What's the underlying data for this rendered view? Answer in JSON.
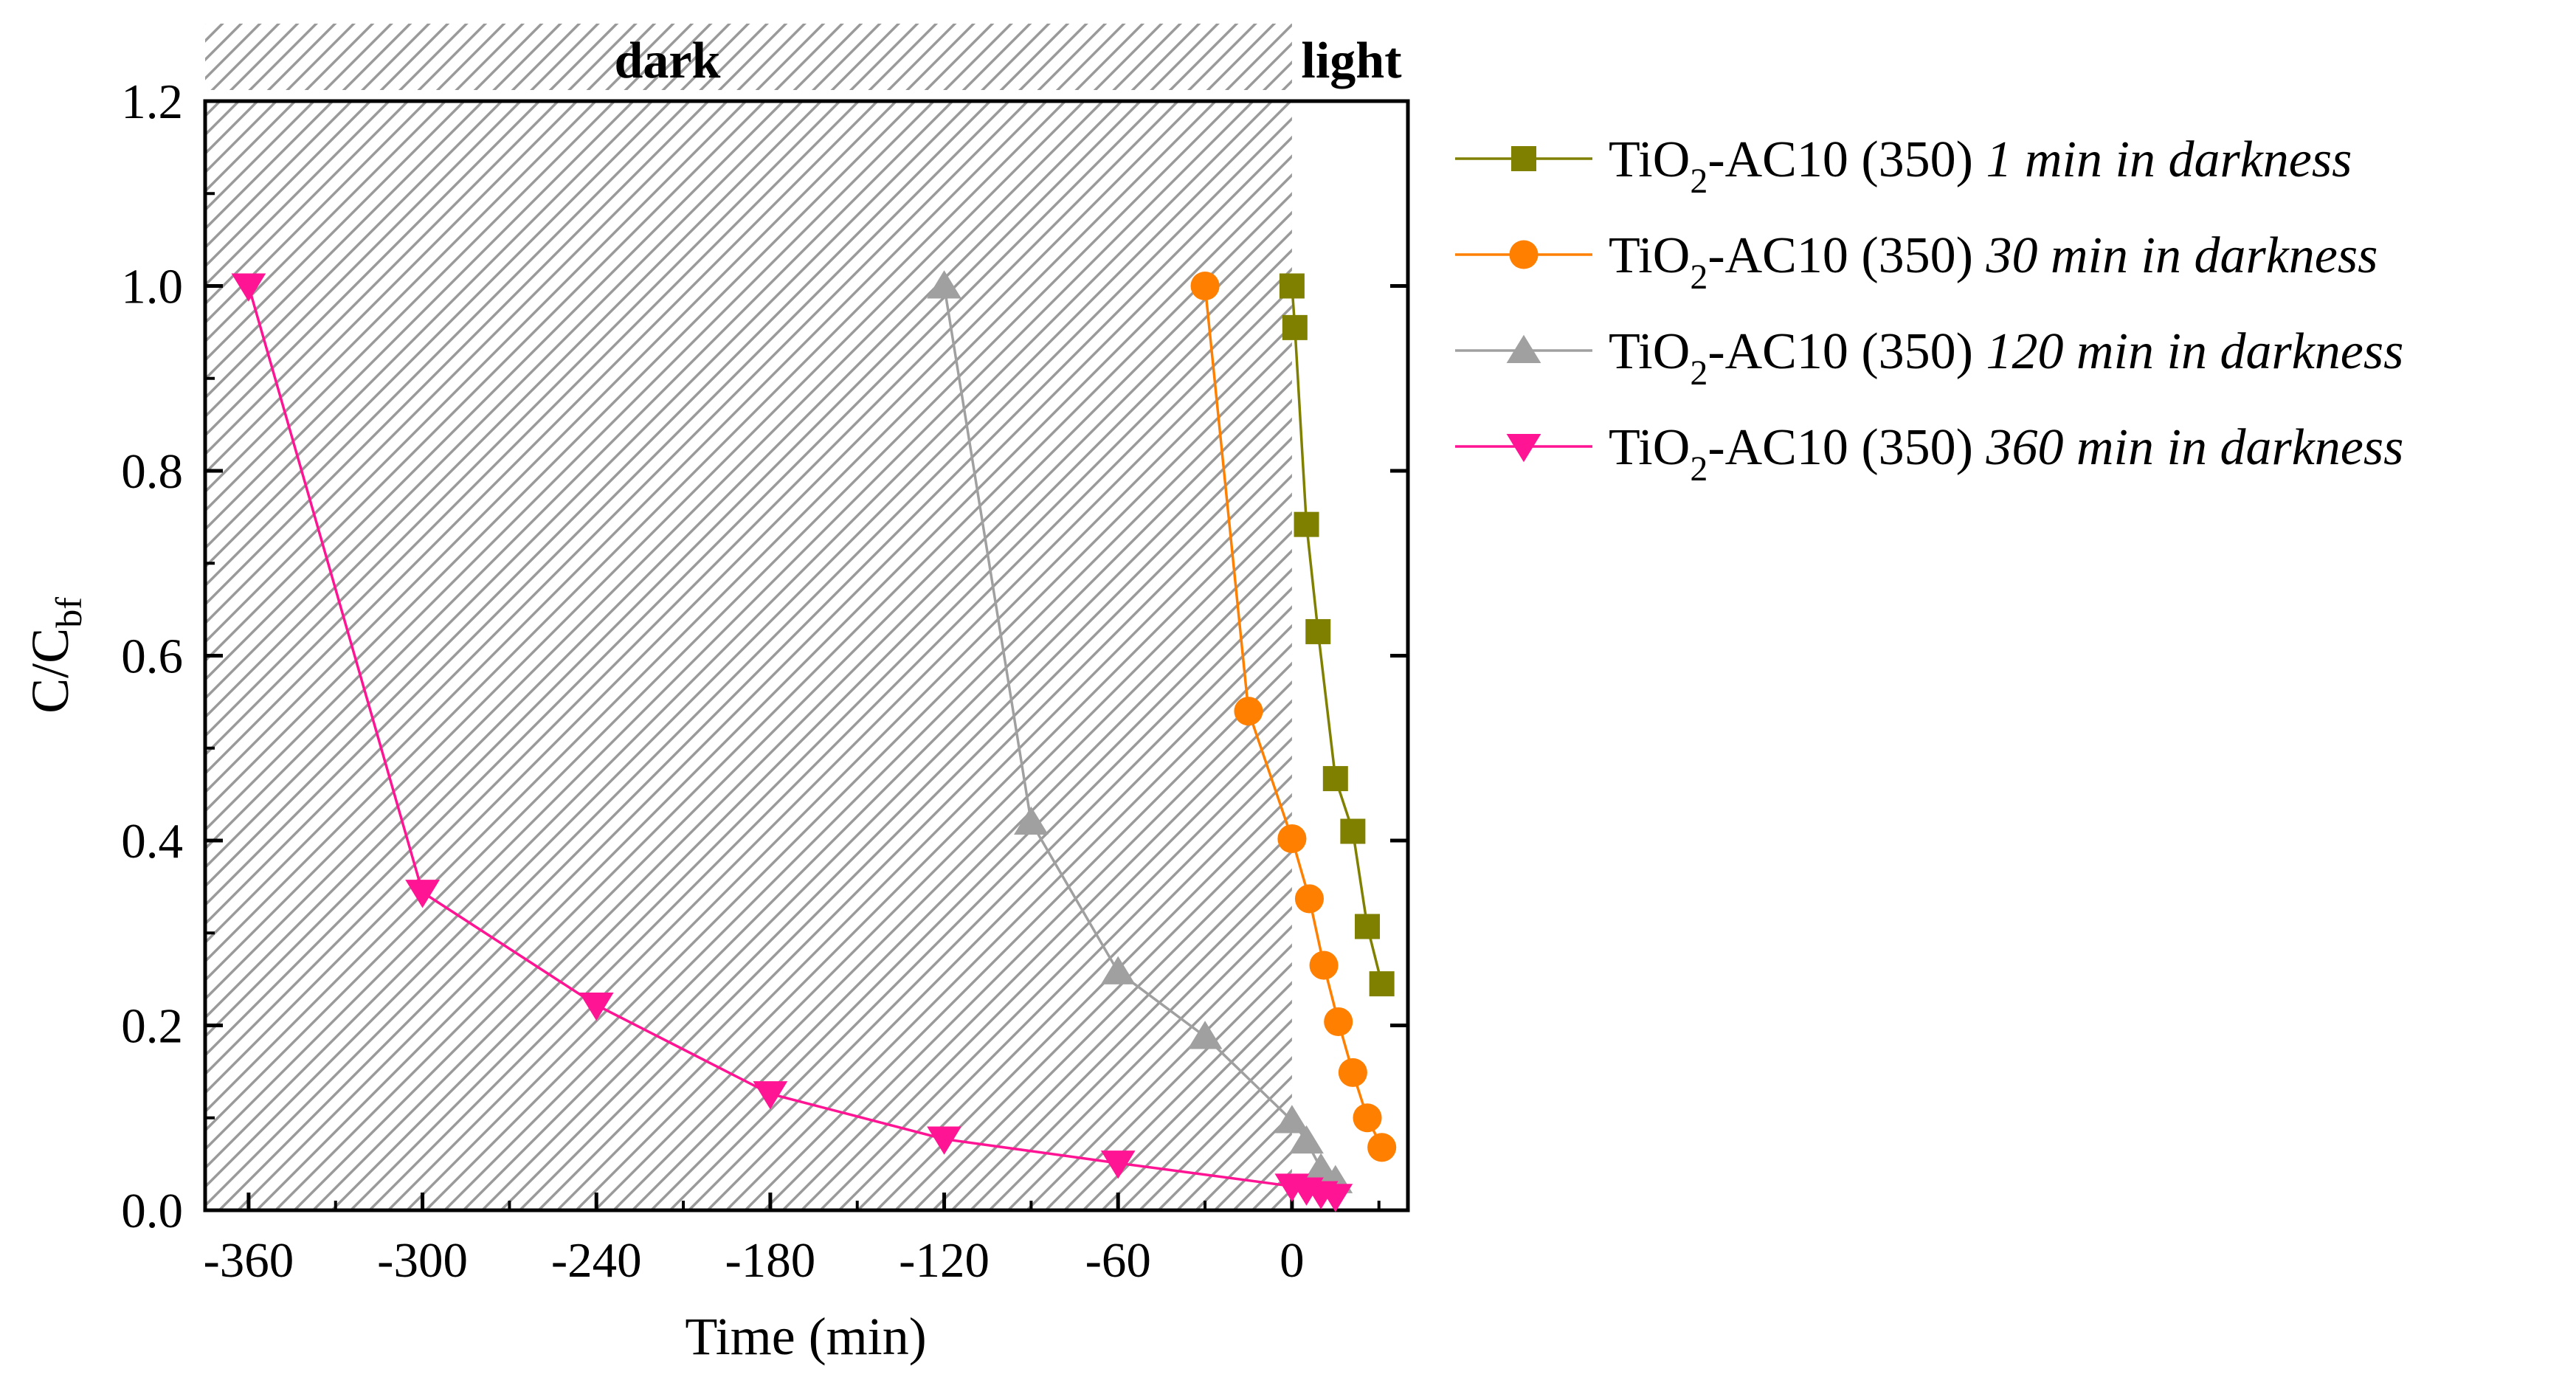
{
  "chart_data": {
    "type": "line",
    "title": "",
    "xlabel": "Time (min)",
    "ylabel": "C/C",
    "ylabel_subscript": "bf",
    "xlim": [
      -375,
      40
    ],
    "ylim": [
      0,
      1.2
    ],
    "x_ticks": [
      -360,
      -300,
      -240,
      -180,
      -120,
      -60,
      0
    ],
    "y_ticks": [
      "0.0",
      "0.2",
      "0.4",
      "0.6",
      "0.8",
      "1.0",
      "1.2"
    ],
    "regions": [
      {
        "label": "dark",
        "from": -375,
        "to": 0,
        "hatched": true
      },
      {
        "label": "light",
        "from": 0,
        "to": 40,
        "hatched": false
      }
    ],
    "legend_position": "right",
    "series": [
      {
        "name_prefix": "TiO",
        "name_subscript": "2",
        "name_main": "-AC10 (350) ",
        "name_italic": "1 min in darkness",
        "marker": "square",
        "color": "#808000",
        "x": [
          0,
          1,
          5,
          9,
          15,
          21,
          26,
          31
        ],
        "y": [
          1.0,
          0.955,
          0.742,
          0.626,
          0.467,
          0.41,
          0.307,
          0.245
        ]
      },
      {
        "name_prefix": "TiO",
        "name_subscript": "2",
        "name_main": "-AC10 (350) ",
        "name_italic": "30 min in darkness",
        "marker": "circle",
        "color": "#ff8000",
        "x": [
          -30,
          -15,
          0,
          6,
          11,
          16,
          21,
          26,
          31
        ],
        "y": [
          1.0,
          0.54,
          0.402,
          0.337,
          0.265,
          0.204,
          0.149,
          0.1,
          0.068
        ]
      },
      {
        "name_prefix": "TiO",
        "name_subscript": "2",
        "name_main": "-AC10 (350) ",
        "name_italic": "120 min in darkness",
        "marker": "triangle-up",
        "color": "#a0a0a0",
        "x": [
          -120,
          -90,
          -60,
          -30,
          0,
          5,
          10,
          15
        ],
        "y": [
          1.0,
          0.42,
          0.258,
          0.188,
          0.097,
          0.075,
          0.045,
          0.032
        ]
      },
      {
        "name_prefix": "TiO",
        "name_subscript": "2",
        "name_main": "-AC10 (350) ",
        "name_italic": "360 min in darkness",
        "marker": "triangle-down",
        "color": "#ff1493",
        "x": [
          -360,
          -300,
          -240,
          -180,
          -120,
          -60,
          0,
          5,
          10,
          15
        ],
        "y": [
          1.0,
          0.344,
          0.222,
          0.126,
          0.077,
          0.051,
          0.026,
          0.022,
          0.018,
          0.015
        ]
      }
    ]
  }
}
